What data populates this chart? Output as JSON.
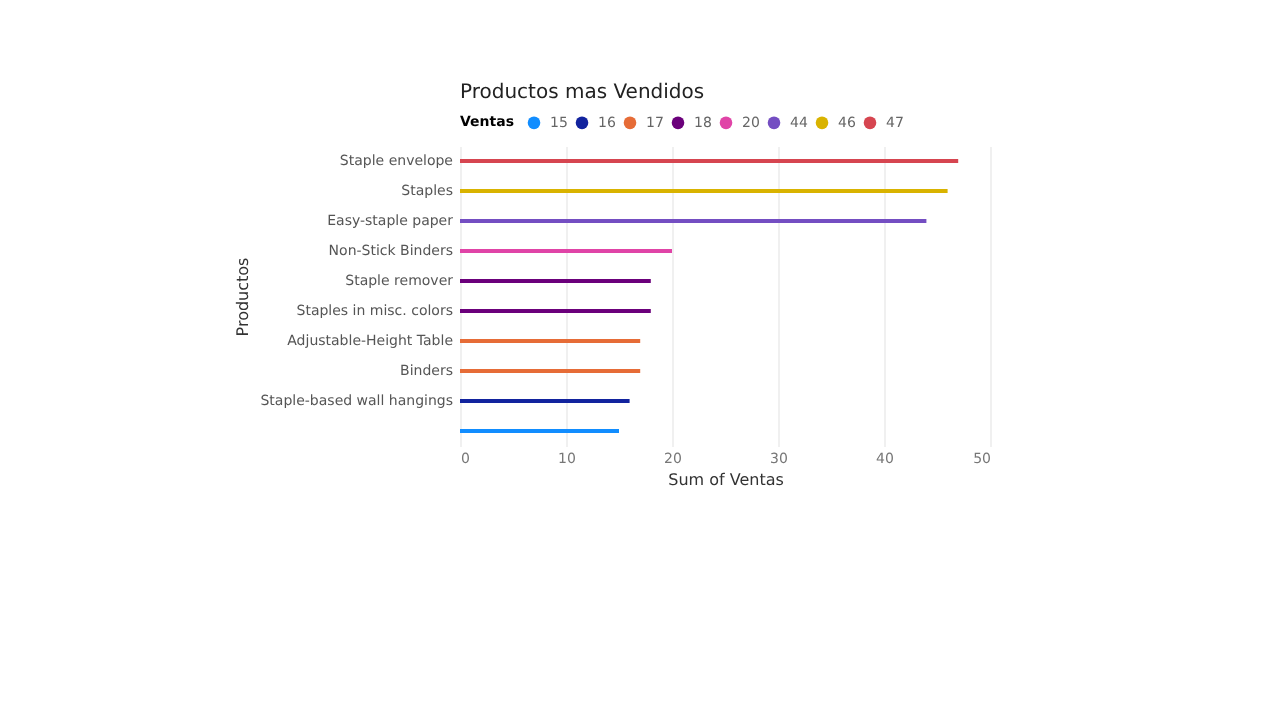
{
  "chart_data": {
    "type": "bar",
    "orientation": "horizontal",
    "title": "Productos mas Vendidos",
    "legend_title": "Ventas",
    "xlabel": "Sum of Ventas",
    "ylabel": "Productos",
    "categories": [
      "Staple envelope",
      "Staples",
      "Easy-staple paper",
      "Non-Stick Binders",
      "Staple remover",
      "Staples in misc. colors",
      "Adjustable-Height Table",
      "Binders",
      "Staple-based wall hangings",
      null
    ],
    "series": [
      {
        "name": "15",
        "color": "#118dff",
        "values": [
          null,
          null,
          null,
          null,
          null,
          null,
          null,
          null,
          null,
          15
        ]
      },
      {
        "name": "16",
        "color": "#12239e",
        "values": [
          null,
          null,
          null,
          null,
          null,
          null,
          null,
          null,
          16,
          null
        ]
      },
      {
        "name": "17",
        "color": "#e66c37",
        "values": [
          null,
          null,
          null,
          null,
          null,
          null,
          17,
          17,
          null,
          null
        ]
      },
      {
        "name": "18",
        "color": "#6b007b",
        "values": [
          null,
          null,
          null,
          null,
          18,
          18,
          null,
          null,
          null,
          null
        ]
      },
      {
        "name": "20",
        "color": "#e044a7",
        "values": [
          null,
          null,
          null,
          20,
          null,
          null,
          null,
          null,
          null,
          null
        ]
      },
      {
        "name": "44",
        "color": "#744ec2",
        "values": [
          null,
          null,
          44,
          null,
          null,
          null,
          null,
          null,
          null,
          null
        ]
      },
      {
        "name": "46",
        "color": "#d9b300",
        "values": [
          null,
          46,
          null,
          null,
          null,
          null,
          null,
          null,
          null,
          null
        ]
      },
      {
        "name": "47",
        "color": "#d64550",
        "values": [
          47,
          null,
          null,
          null,
          null,
          null,
          null,
          null,
          null,
          null
        ]
      }
    ],
    "xlim": [
      0,
      50
    ],
    "xticks": [
      0,
      10,
      20,
      30,
      40,
      50
    ],
    "grid": "x",
    "legend": "top left"
  }
}
